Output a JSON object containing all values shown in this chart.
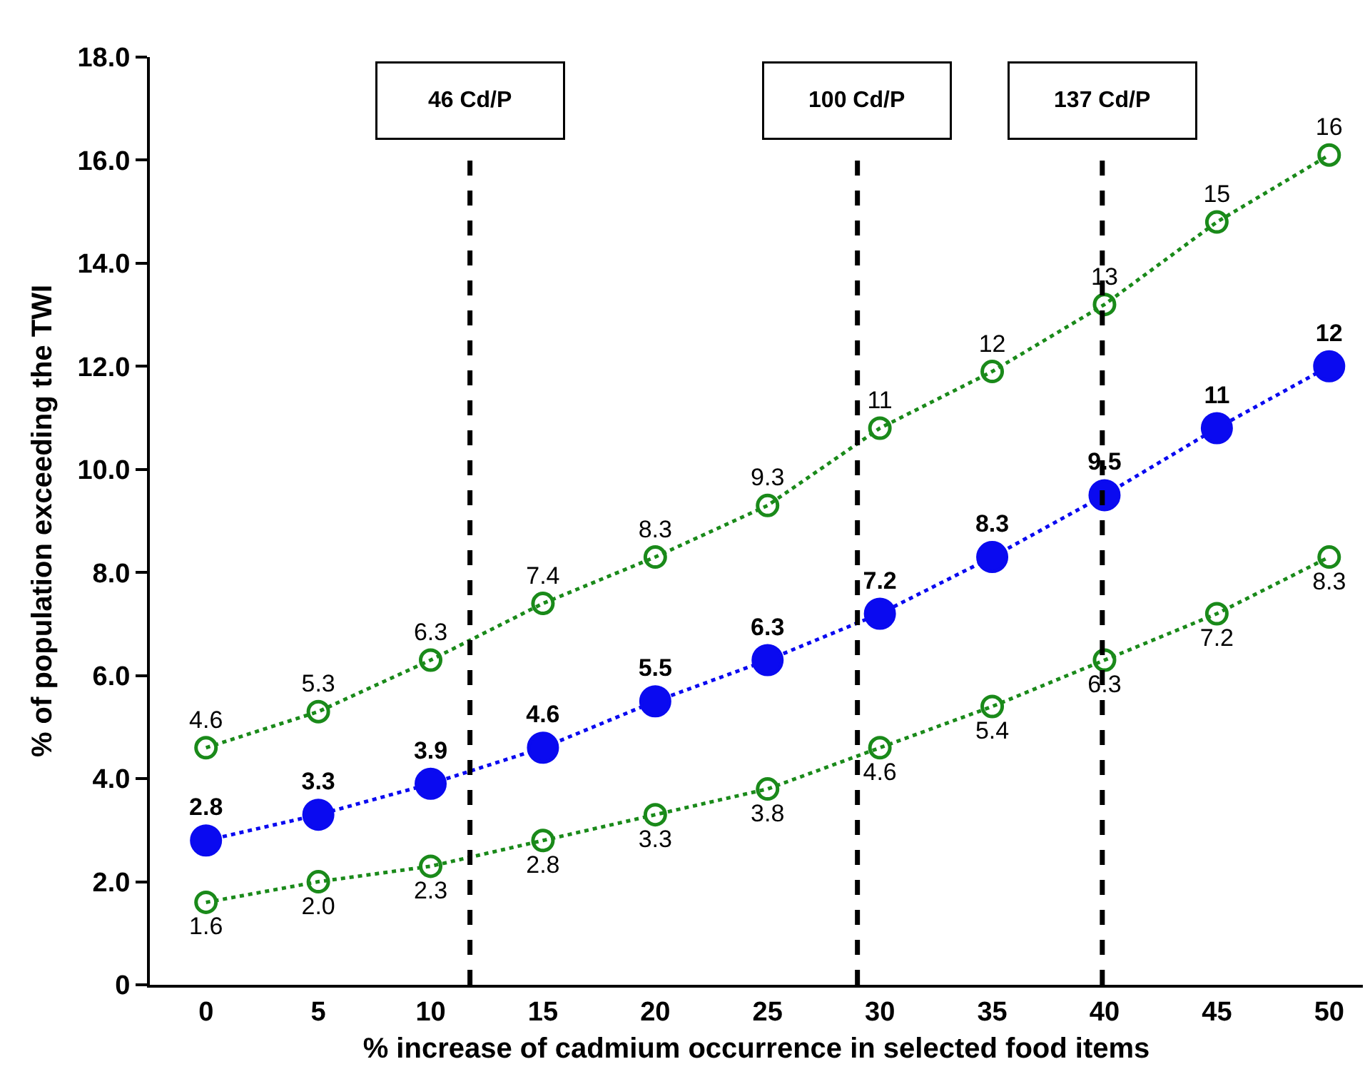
{
  "chart_data": {
    "type": "line",
    "xlabel": "% increase of cadmium occurrence in selected food items",
    "ylabel": "% of population exceeding the TWI",
    "x": [
      0,
      5,
      10,
      15,
      20,
      25,
      30,
      35,
      40,
      45,
      50
    ],
    "series": [
      {
        "color": "#1a8a1a",
        "values": [
          4.6,
          5.3,
          6.3,
          7.4,
          8.3,
          9.3,
          10.8,
          11.9,
          13.2,
          14.8,
          16.1
        ],
        "value_labels": [
          "4.6",
          "5.3",
          "6.3",
          "7.4",
          "8.3",
          "9.3",
          "11",
          "12",
          "13",
          "15",
          "16"
        ]
      },
      {
        "color": "#0a0af0",
        "values": [
          2.8,
          3.3,
          3.9,
          4.6,
          5.5,
          6.3,
          7.2,
          8.3,
          9.5,
          10.8,
          12.0
        ],
        "value_labels": [
          "2.8",
          "3.3",
          "3.9",
          "4.6",
          "5.5",
          "6.3",
          "7.2",
          "8.3",
          "9.5",
          "11",
          "12"
        ]
      },
      {
        "color": "#1a8a1a",
        "values": [
          1.6,
          2.0,
          2.3,
          2.8,
          3.3,
          3.8,
          4.6,
          5.4,
          6.3,
          7.2,
          8.3
        ],
        "value_labels": [
          "1.6",
          "2.0",
          "2.3",
          "2.8",
          "3.3",
          "3.8",
          "4.6",
          "5.4",
          "6.3",
          "7.2",
          "8.3"
        ]
      }
    ],
    "xlim": [
      -2.5,
      51.5
    ],
    "xticks": [
      0,
      5,
      10,
      15,
      20,
      25,
      30,
      35,
      40,
      45,
      50
    ],
    "ylim": [
      0,
      18
    ],
    "yticks": [
      0,
      {
        "value": 2,
        "label": "2.0"
      },
      {
        "value": 4,
        "label": "4.0"
      },
      {
        "value": 6,
        "label": "6.0"
      },
      {
        "value": 8,
        "label": "8.0"
      },
      {
        "value": 10,
        "label": "10.0"
      },
      {
        "value": 12,
        "label": "12.0"
      },
      {
        "value": 14,
        "label": "14.0"
      },
      {
        "value": 16,
        "label": "16.0"
      },
      {
        "value": 18,
        "label": "18.0"
      }
    ],
    "ref_lines": [
      {
        "axis": "x",
        "value": 11.75,
        "label": "46 Cd/P",
        "color": "#000000",
        "line_style": "dashed"
      },
      {
        "axis": "x",
        "value": 29.0,
        "label": "100 Cd/P",
        "color": "#000000",
        "line_style": "dashed"
      },
      {
        "axis": "x",
        "value": 39.9,
        "label": "137 Cd/P",
        "color": "#000000",
        "line_style": "dashed"
      }
    ],
    "grid": false,
    "marker": "circle",
    "line_style": "dotted"
  }
}
